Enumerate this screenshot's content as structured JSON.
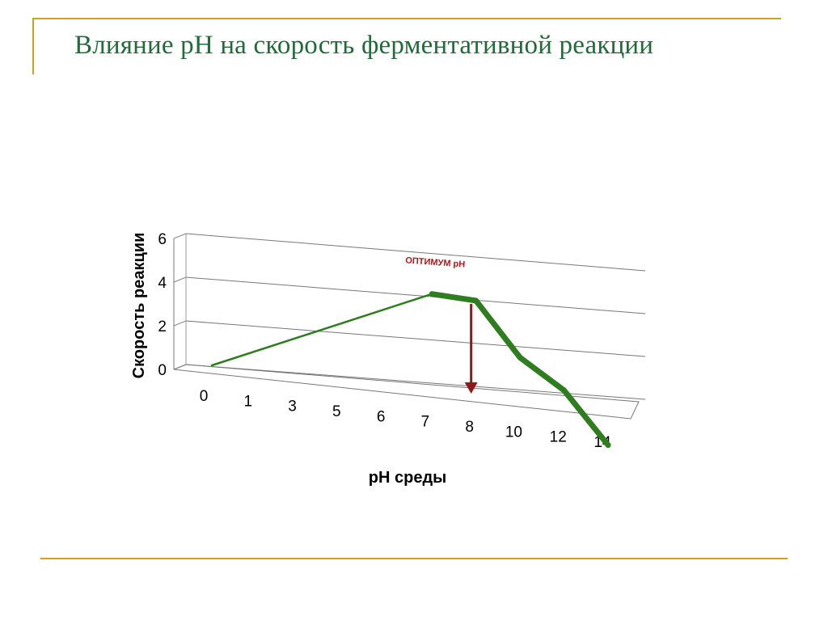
{
  "slide": {
    "title": "Влияние pH на скорость ферментативной реакции"
  },
  "colors": {
    "title": "#1f6b3a",
    "frame": "#c9a227",
    "line": "#2e7d1f",
    "arrow": "#8b1a1a",
    "annotation": "#b01717"
  },
  "chart_data": {
    "type": "line",
    "title": "",
    "xlabel": "pH среды",
    "ylabel": "Скорость реакции",
    "categories": [
      "0",
      "1",
      "3",
      "5",
      "6",
      "7",
      "8",
      "10",
      "12",
      "14"
    ],
    "yticks": [
      "0",
      "2",
      "4",
      "6"
    ],
    "ylim": [
      0,
      6
    ],
    "grid": true,
    "series": [
      {
        "values": [
          0,
          null,
          null,
          null,
          null,
          4.3,
          4.2,
          1.8,
          0.5,
          -1.8
        ]
      }
    ],
    "annotation": {
      "text": "ОПТИМУМ pH",
      "category": "8"
    }
  }
}
